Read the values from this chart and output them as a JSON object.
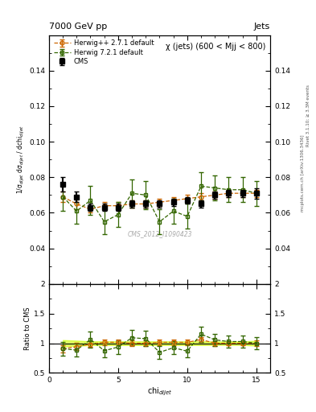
{
  "title_main": "7000 GeV pp",
  "title_right": "Jets",
  "subtitle": "χ (jets) (600 < Mjj < 800)",
  "watermark": "CMS_2012_I1090423",
  "right_label1": "Rivet 3.1.10; ≥ 3.3M events",
  "right_label2": "mcplots.cern.ch [arXiv:1306.3436]",
  "xlabel": "chi$_{dijet}$",
  "ylabel_main": "1/σ$_{dijet}$ dσ$_{dijet}$ / dchi$_{dijet}$",
  "ylabel_ratio": "Ratio to CMS",
  "xlim": [
    0,
    16
  ],
  "ylim_main": [
    0.02,
    0.16
  ],
  "ylim_ratio": [
    0.5,
    2.0
  ],
  "yticks_main": [
    0.04,
    0.06,
    0.08,
    0.1,
    0.12,
    0.14
  ],
  "yticks_ratio": [
    0.5,
    1.0,
    1.5,
    2.0
  ],
  "cms_x": [
    1,
    2,
    3,
    4,
    5,
    6,
    7,
    8,
    9,
    10,
    11,
    12,
    13,
    14,
    15
  ],
  "cms_y": [
    0.076,
    0.069,
    0.063,
    0.063,
    0.063,
    0.065,
    0.065,
    0.065,
    0.066,
    0.067,
    0.065,
    0.07,
    0.071,
    0.071,
    0.071
  ],
  "cms_yerr": [
    0.004,
    0.003,
    0.002,
    0.002,
    0.002,
    0.002,
    0.002,
    0.002,
    0.002,
    0.002,
    0.002,
    0.002,
    0.002,
    0.002,
    0.003
  ],
  "hw271_x": [
    1,
    2,
    3,
    4,
    5,
    6,
    7,
    8,
    9,
    10,
    11,
    12,
    13,
    14,
    15
  ],
  "hw271_y": [
    0.069,
    0.065,
    0.062,
    0.064,
    0.064,
    0.065,
    0.065,
    0.066,
    0.067,
    0.068,
    0.069,
    0.07,
    0.071,
    0.071,
    0.071
  ],
  "hw271_yerr": [
    0.003,
    0.003,
    0.002,
    0.002,
    0.002,
    0.002,
    0.002,
    0.002,
    0.002,
    0.002,
    0.002,
    0.002,
    0.002,
    0.002,
    0.002
  ],
  "hw721_x": [
    1,
    2,
    3,
    4,
    5,
    6,
    7,
    8,
    9,
    10,
    11,
    12,
    13,
    14,
    15
  ],
  "hw721_y": [
    0.069,
    0.061,
    0.067,
    0.055,
    0.059,
    0.071,
    0.07,
    0.055,
    0.061,
    0.058,
    0.075,
    0.074,
    0.073,
    0.073,
    0.071
  ],
  "hw721_yerr": [
    0.008,
    0.007,
    0.008,
    0.007,
    0.007,
    0.008,
    0.008,
    0.007,
    0.007,
    0.007,
    0.008,
    0.007,
    0.007,
    0.007,
    0.007
  ],
  "cms_color": "black",
  "hw271_color": "#cc6600",
  "hw721_color": "#336600",
  "cms_label": "CMS",
  "hw271_label": "Herwig++ 2.7.1 default",
  "hw721_label": "Herwig 7.2.1 default",
  "ratio_band_color": "#ccff00",
  "ratio_band_alpha": 0.6
}
